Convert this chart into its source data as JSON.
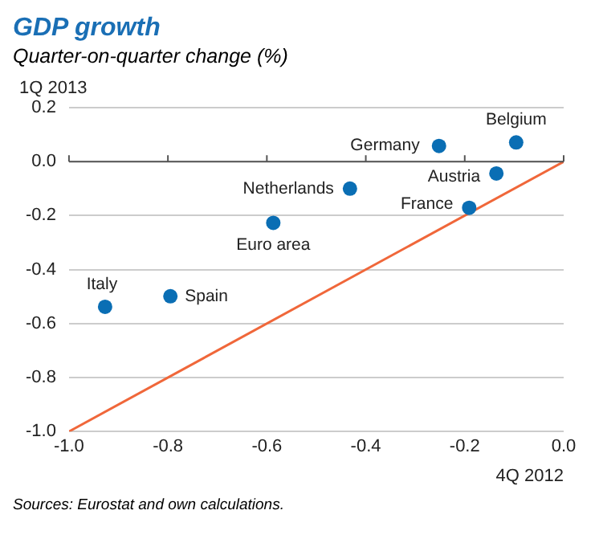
{
  "chart_data": {
    "type": "scatter",
    "title": "GDP growth",
    "subtitle": "Quarter-on-quarter change (%)",
    "xlabel": "4Q 2012",
    "ylabel": "1Q 2013",
    "series": [
      {
        "color": "#0a6eb4",
        "marker": "circle",
        "x": [
          -0.096,
          -0.252,
          -0.136,
          -0.191,
          -0.432,
          -0.587,
          -0.795,
          -0.927
        ],
        "values": [
          0.071,
          0.058,
          -0.044,
          -0.171,
          -0.1,
          -0.227,
          -0.499,
          -0.538
        ]
      },
      {
        "type": "line",
        "marker": "none",
        "color": "#f0673a",
        "x": [
          -1.0,
          0.0
        ],
        "values": [
          -1.0,
          0.0
        ]
      }
    ],
    "annotations": [
      {
        "text": "Belgium",
        "x": -0.096,
        "y": 0.071
      },
      {
        "text": "Germany",
        "x": -0.252,
        "y": 0.058
      },
      {
        "text": "Austria",
        "x": -0.136,
        "y": -0.044
      },
      {
        "text": "France",
        "x": -0.191,
        "y": -0.171
      },
      {
        "text": "Netherlands",
        "x": -0.432,
        "y": -0.1
      },
      {
        "text": "Euro area",
        "x": -0.587,
        "y": -0.227
      },
      {
        "text": "Spain",
        "x": -0.795,
        "y": -0.499
      },
      {
        "text": "Italy",
        "x": -0.927,
        "y": -0.538
      },
      "Sources: Eurostat and own calculations."
    ],
    "xlim": [
      -1.0,
      0.0
    ],
    "xticks": [
      {
        "value": -1.0,
        "label": "-1.0"
      },
      -0.8,
      -0.6,
      -0.4,
      -0.2,
      {
        "value": 0.0,
        "label": "0.0"
      }
    ],
    "ylim": [
      -1.0,
      0.2
    ],
    "yticks": [
      {
        "value": -1.0,
        "label": "-1.0"
      },
      -0.8,
      -0.6,
      -0.4,
      -0.2,
      {
        "value": 0.0,
        "label": "0.0"
      },
      0.2
    ],
    "grid": "y",
    "legend": false,
    "line_style": "solid"
  }
}
